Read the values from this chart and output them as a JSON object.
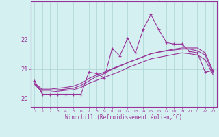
{
  "xlabel": "Windchill (Refroidissement éolien,°C)",
  "background_color": "#d4f0f0",
  "grid_color": "#b0d8d8",
  "line_color": "#993399",
  "spine_color": "#993399",
  "xlim": [
    -0.5,
    23.5
  ],
  "ylim": [
    19.72,
    23.3
  ],
  "yticks": [
    20,
    21,
    22
  ],
  "xticks": [
    0,
    1,
    2,
    3,
    4,
    5,
    6,
    7,
    8,
    9,
    10,
    11,
    12,
    13,
    14,
    15,
    16,
    17,
    18,
    19,
    20,
    21,
    22,
    23
  ],
  "hours": [
    0,
    1,
    2,
    3,
    4,
    5,
    6,
    7,
    8,
    9,
    10,
    11,
    12,
    13,
    14,
    15,
    16,
    17,
    18,
    19,
    20,
    21,
    22,
    23
  ],
  "temp_line": [
    20.6,
    20.15,
    20.15,
    20.15,
    20.15,
    20.15,
    20.15,
    20.9,
    20.85,
    20.7,
    21.7,
    21.45,
    22.05,
    21.55,
    22.35,
    22.85,
    22.35,
    21.9,
    21.85,
    21.85,
    21.6,
    21.55,
    20.9,
    20.95
  ],
  "trend1": [
    20.5,
    20.28,
    20.28,
    20.3,
    20.32,
    20.35,
    20.45,
    20.6,
    20.75,
    20.85,
    21.0,
    21.1,
    21.22,
    21.32,
    21.42,
    21.52,
    21.58,
    21.63,
    21.68,
    21.72,
    21.72,
    21.72,
    21.55,
    20.95
  ],
  "trend2": [
    20.52,
    20.32,
    20.32,
    20.35,
    20.38,
    20.42,
    20.52,
    20.68,
    20.8,
    20.9,
    21.02,
    21.12,
    21.22,
    21.32,
    21.42,
    21.52,
    21.57,
    21.62,
    21.65,
    21.68,
    21.68,
    21.62,
    21.48,
    20.88
  ],
  "trend3": [
    20.48,
    20.22,
    20.22,
    20.25,
    20.28,
    20.3,
    20.38,
    20.52,
    20.62,
    20.72,
    20.82,
    20.92,
    21.05,
    21.15,
    21.25,
    21.35,
    21.4,
    21.45,
    21.5,
    21.55,
    21.52,
    21.48,
    21.32,
    20.82
  ]
}
